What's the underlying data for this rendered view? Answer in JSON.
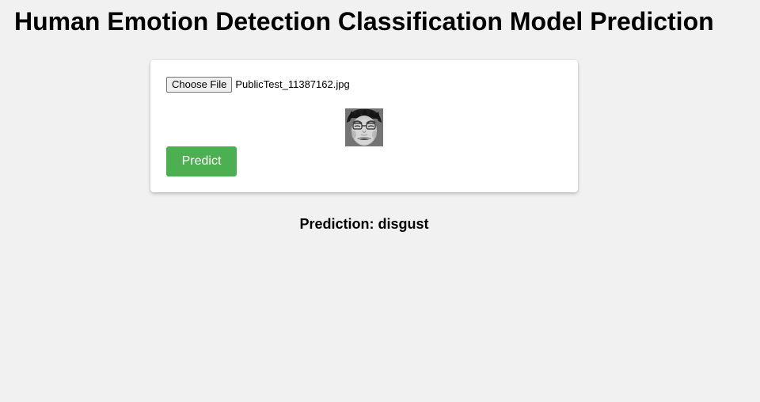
{
  "header": {
    "title": "Human Emotion Detection Classification Model Prediction"
  },
  "upload": {
    "choose_label": "Choose File",
    "file_name": "PublicTest_11387162.jpg",
    "preview_icon": "face-photo-grayscale"
  },
  "actions": {
    "predict_label": "Predict",
    "predict_color": "#4caf50"
  },
  "result": {
    "prediction_text": "Prediction: disgust"
  }
}
